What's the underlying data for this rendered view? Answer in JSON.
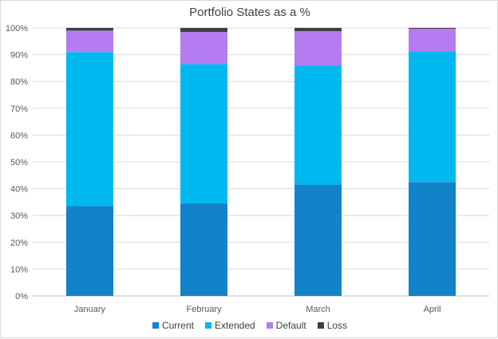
{
  "chart_data": {
    "type": "bar",
    "stacked": true,
    "title": "Portfolio States as a %",
    "xlabel": "",
    "ylabel": "",
    "categories": [
      "January",
      "February",
      "March",
      "April"
    ],
    "ylim": [
      0,
      100
    ],
    "yticks": [
      "0%",
      "10%",
      "20%",
      "30%",
      "40%",
      "50%",
      "60%",
      "70%",
      "80%",
      "90%",
      "100%"
    ],
    "grid": true,
    "legend_position": "bottom",
    "series": [
      {
        "name": "Current",
        "color": "#1283c9",
        "values": [
          33.5,
          34.5,
          41.5,
          42.5
        ]
      },
      {
        "name": "Extended",
        "color": "#00b8f0",
        "values": [
          57.5,
          52.0,
          44.5,
          48.7
        ]
      },
      {
        "name": "Default",
        "color": "#b47cf0",
        "values": [
          8.0,
          12.0,
          12.8,
          8.5
        ]
      },
      {
        "name": "Loss",
        "color": "#404040",
        "values": [
          1.0,
          1.5,
          1.2,
          0.3
        ]
      }
    ]
  }
}
